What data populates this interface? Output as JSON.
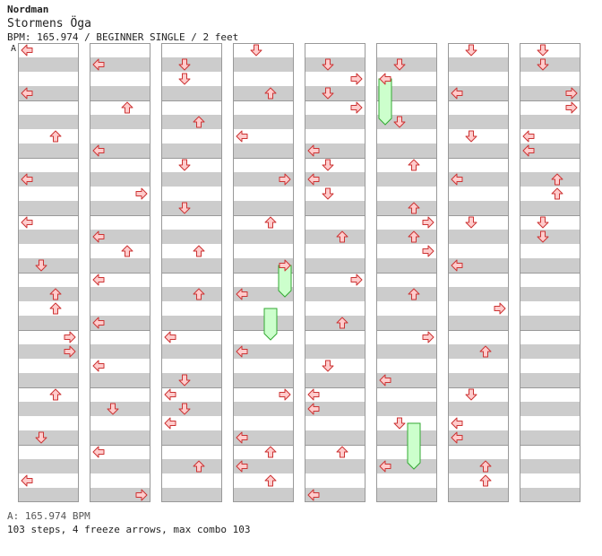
{
  "header": {
    "artist": "Nordman",
    "title": "Stormens Öga",
    "subtitle": "BPM: 165.974 / BEGINNER SINGLE / 2 feet"
  },
  "footer": {
    "bpm_line": "A: 165.974 BPM",
    "stats": "103 steps, 4 freeze arrows, max combo 103"
  },
  "colors": {
    "stripe": "#cccccc",
    "column_border": "#999999",
    "arrow_fill": "#ffcccc",
    "arrow_stroke": "#cc3333",
    "freeze_fill": "#ccffcc",
    "freeze_stroke": "#33aa33"
  },
  "chart_data": {
    "type": "step-chart",
    "columns": 8,
    "measures_per_column": 8,
    "rows_per_measure": 4,
    "lanes": [
      "left",
      "down",
      "up",
      "right"
    ],
    "bpm_markers": [
      {
        "column": 0,
        "measure": 0,
        "label": "A"
      }
    ],
    "notes": [
      [
        0,
        0,
        "left"
      ],
      [
        0,
        3,
        "left"
      ],
      [
        0,
        6,
        "up"
      ],
      [
        0,
        9,
        "left"
      ],
      [
        0,
        12,
        "left"
      ],
      [
        0,
        15,
        "down"
      ],
      [
        0,
        17,
        "up"
      ],
      [
        0,
        18,
        "up"
      ],
      [
        0,
        20,
        "right"
      ],
      [
        0,
        21,
        "right"
      ],
      [
        0,
        24,
        "up"
      ],
      [
        0,
        27,
        "down"
      ],
      [
        0,
        30,
        "left"
      ],
      [
        1,
        1,
        "left"
      ],
      [
        1,
        4,
        "up"
      ],
      [
        1,
        7,
        "left"
      ],
      [
        1,
        10,
        "right"
      ],
      [
        1,
        13,
        "left"
      ],
      [
        1,
        14,
        "up"
      ],
      [
        1,
        16,
        "left"
      ],
      [
        1,
        19,
        "left"
      ],
      [
        1,
        22,
        "left"
      ],
      [
        1,
        25,
        "down"
      ],
      [
        1,
        28,
        "left"
      ],
      [
        1,
        31,
        "right"
      ],
      [
        2,
        1,
        "down"
      ],
      [
        2,
        2,
        "down"
      ],
      [
        2,
        5,
        "up"
      ],
      [
        2,
        8,
        "down"
      ],
      [
        2,
        11,
        "down"
      ],
      [
        2,
        14,
        "up"
      ],
      [
        2,
        17,
        "up"
      ],
      [
        2,
        20,
        "left"
      ],
      [
        2,
        23,
        "down"
      ],
      [
        2,
        24,
        "left"
      ],
      [
        2,
        25,
        "down"
      ],
      [
        2,
        26,
        "left"
      ],
      [
        2,
        29,
        "up"
      ],
      [
        3,
        0,
        "down"
      ],
      [
        3,
        3,
        "up"
      ],
      [
        3,
        6,
        "left"
      ],
      [
        3,
        9,
        "right"
      ],
      [
        3,
        12,
        "up"
      ],
      [
        3,
        15,
        "right"
      ],
      [
        3,
        17,
        "left"
      ],
      [
        3,
        21,
        "left"
      ],
      [
        3,
        24,
        "right"
      ],
      [
        3,
        27,
        "left"
      ],
      [
        3,
        28,
        "up"
      ],
      [
        3,
        29,
        "left"
      ],
      [
        3,
        30,
        "up"
      ],
      [
        4,
        1,
        "down"
      ],
      [
        4,
        2,
        "right"
      ],
      [
        4,
        3,
        "down"
      ],
      [
        4,
        4,
        "right"
      ],
      [
        4,
        7,
        "left"
      ],
      [
        4,
        8,
        "down"
      ],
      [
        4,
        9,
        "left"
      ],
      [
        4,
        10,
        "down"
      ],
      [
        4,
        13,
        "up"
      ],
      [
        4,
        16,
        "right"
      ],
      [
        4,
        19,
        "up"
      ],
      [
        4,
        22,
        "down"
      ],
      [
        4,
        24,
        "left"
      ],
      [
        4,
        25,
        "left"
      ],
      [
        4,
        28,
        "up"
      ],
      [
        4,
        31,
        "left"
      ],
      [
        5,
        1,
        "down"
      ],
      [
        5,
        2,
        "left"
      ],
      [
        5,
        5,
        "down"
      ],
      [
        5,
        8,
        "up"
      ],
      [
        5,
        11,
        "up"
      ],
      [
        5,
        12,
        "right"
      ],
      [
        5,
        13,
        "up"
      ],
      [
        5,
        14,
        "right"
      ],
      [
        5,
        17,
        "up"
      ],
      [
        5,
        20,
        "right"
      ],
      [
        5,
        23,
        "left"
      ],
      [
        5,
        26,
        "down"
      ],
      [
        5,
        29,
        "left"
      ],
      [
        6,
        0,
        "down"
      ],
      [
        6,
        3,
        "left"
      ],
      [
        6,
        6,
        "down"
      ],
      [
        6,
        9,
        "left"
      ],
      [
        6,
        12,
        "down"
      ],
      [
        6,
        15,
        "left"
      ],
      [
        6,
        18,
        "right"
      ],
      [
        6,
        21,
        "up"
      ],
      [
        6,
        24,
        "down"
      ],
      [
        6,
        26,
        "left"
      ],
      [
        6,
        27,
        "left"
      ],
      [
        6,
        29,
        "up"
      ],
      [
        6,
        30,
        "up"
      ],
      [
        7,
        0,
        "down"
      ],
      [
        7,
        1,
        "down"
      ],
      [
        7,
        3,
        "right"
      ],
      [
        7,
        4,
        "right"
      ],
      [
        7,
        6,
        "left"
      ],
      [
        7,
        7,
        "left"
      ],
      [
        7,
        9,
        "up"
      ],
      [
        7,
        10,
        "up"
      ],
      [
        7,
        12,
        "down"
      ],
      [
        7,
        13,
        "down"
      ]
    ],
    "freezes": [
      {
        "column": 3,
        "lane": "right",
        "start_row": 15,
        "end_row": 17
      },
      {
        "column": 3,
        "lane": "up",
        "start_row": 18,
        "end_row": 20
      },
      {
        "column": 5,
        "lane": "left",
        "start_row": 2,
        "end_row": 5
      },
      {
        "column": 5,
        "lane": "up",
        "start_row": 26,
        "end_row": 29
      }
    ]
  }
}
